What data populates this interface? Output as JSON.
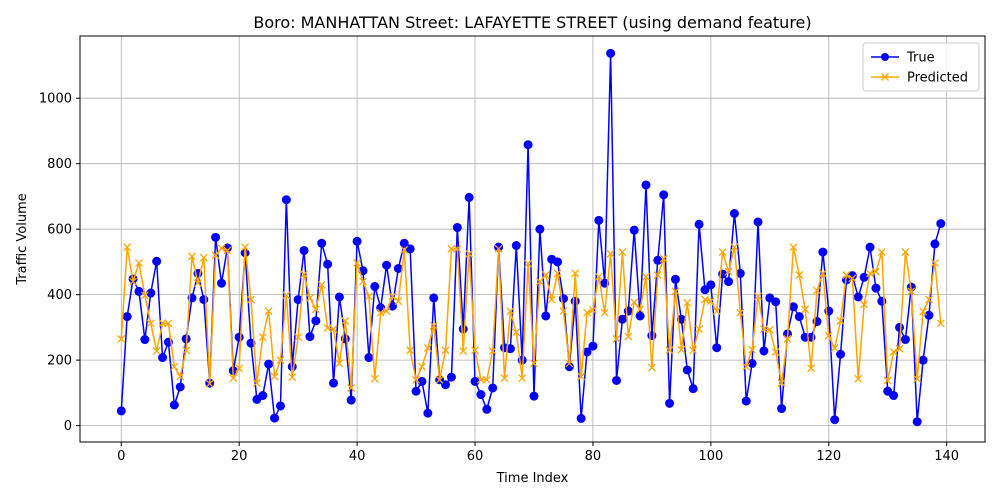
{
  "chart_data": {
    "type": "line",
    "title": "Boro: MANHATTAN Street: LAFAYETTE STREET (using demand feature)",
    "xlabel": "Time Index",
    "ylabel": "Traffic Volume",
    "xlim": [
      -7,
      146.5
    ],
    "ylim": [
      -50,
      1190
    ],
    "xticks": [
      0,
      20,
      40,
      60,
      80,
      100,
      120,
      140
    ],
    "yticks": [
      0,
      200,
      400,
      600,
      800,
      1000
    ],
    "grid": true,
    "legend_position": "top-right",
    "colors": {
      "true": "#0000ff",
      "predicted": "#ffa500"
    },
    "series": [
      {
        "name": "True",
        "marker": "circle",
        "values": [
          45,
          333,
          448,
          410,
          263,
          405,
          502,
          208,
          255,
          63,
          118,
          265,
          390,
          465,
          385,
          130,
          575,
          435,
          543,
          168,
          270,
          528,
          252,
          80,
          92,
          188,
          23,
          60,
          690,
          180,
          385,
          535,
          272,
          320,
          557,
          493,
          130,
          393,
          265,
          78,
          563,
          473,
          208,
          425,
          360,
          490,
          365,
          480,
          557,
          540,
          105,
          135,
          38,
          390,
          140,
          125,
          148,
          605,
          295,
          697,
          135,
          95,
          50,
          115,
          545,
          238,
          235,
          550,
          200,
          858,
          90,
          600,
          335,
          508,
          500,
          388,
          180,
          380,
          22,
          225,
          243,
          627,
          435,
          1137,
          138,
          325,
          350,
          597,
          335,
          735,
          275,
          505,
          705,
          68,
          447,
          325,
          170,
          113,
          615,
          415,
          430,
          238,
          463,
          440,
          648,
          465,
          75,
          190,
          622,
          228,
          390,
          378,
          52,
          280,
          363,
          333,
          270,
          270,
          318,
          530,
          350,
          18,
          218,
          445,
          458,
          393,
          453,
          545,
          420,
          380,
          105,
          92,
          300,
          263,
          423,
          12,
          200,
          337,
          555,
          617
        ]
      },
      {
        "name": "Predicted",
        "marker": "x",
        "values": [
          265,
          545,
          440,
          497,
          398,
          312,
          228,
          313,
          312,
          180,
          150,
          230,
          517,
          435,
          513,
          128,
          520,
          542,
          535,
          145,
          175,
          545,
          385,
          130,
          270,
          350,
          150,
          200,
          398,
          148,
          270,
          462,
          390,
          355,
          430,
          298,
          295,
          190,
          320,
          115,
          497,
          440,
          395,
          143,
          345,
          350,
          395,
          380,
          537,
          230,
          140,
          180,
          237,
          305,
          140,
          230,
          540,
          540,
          228,
          525,
          230,
          140,
          140,
          228,
          540,
          145,
          350,
          285,
          145,
          495,
          190,
          440,
          460,
          385,
          465,
          350,
          190,
          465,
          150,
          345,
          353,
          455,
          345,
          525,
          265,
          530,
          272,
          377,
          355,
          455,
          177,
          460,
          510,
          230,
          410,
          232,
          375,
          230,
          295,
          385,
          380,
          350,
          530,
          470,
          545,
          345,
          180,
          232,
          395,
          295,
          293,
          225,
          130,
          265,
          545,
          460,
          355,
          175,
          413,
          465,
          275,
          237,
          320,
          460,
          450,
          143,
          370,
          465,
          470,
          530,
          138,
          225,
          235,
          530,
          410,
          143,
          348,
          385,
          497,
          312
        ]
      }
    ]
  }
}
